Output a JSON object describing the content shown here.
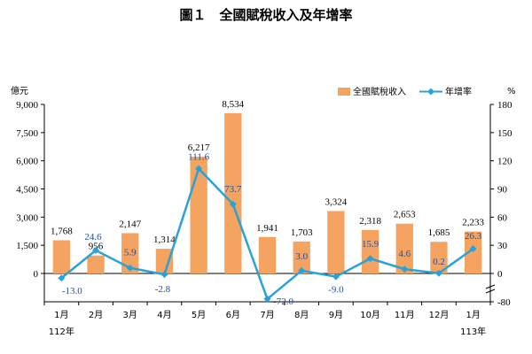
{
  "chart_data": {
    "type": "bar+line",
    "title": "圖１　全國賦稅收入及年增率",
    "left_unit": "億元",
    "right_unit": "%",
    "categories": [
      "1月",
      "2月",
      "3月",
      "4月",
      "5月",
      "6月",
      "7月",
      "8月",
      "9月",
      "10月",
      "11月",
      "12月",
      "1月"
    ],
    "year_labels": [
      {
        "index": 0,
        "text": "112年"
      },
      {
        "index": 12,
        "text": "113年"
      }
    ],
    "series": [
      {
        "name": "全國賦稅收入",
        "type": "bar",
        "axis": "left",
        "color": "#f4a460",
        "values": [
          1768,
          956,
          2147,
          1314,
          6217,
          8534,
          1941,
          1703,
          3324,
          2318,
          2653,
          1685,
          2233
        ],
        "labels": [
          "1,768",
          "956",
          "2,147",
          "1,314",
          "6,217",
          "8,534",
          "1,941",
          "1,703",
          "3,324",
          "2,318",
          "2,653",
          "1,685",
          "2,233"
        ]
      },
      {
        "name": "年增率",
        "type": "line",
        "axis": "right",
        "color": "#2aa2d8",
        "values": [
          -13.0,
          24.6,
          5.9,
          -2.8,
          111.6,
          73.7,
          -72.0,
          3.0,
          -9.0,
          15.9,
          4.6,
          0.2,
          26.3
        ],
        "labels": [
          "-13.0",
          "24.6",
          "5.9",
          "-2.8",
          "111.6",
          "73.7",
          "-72.0",
          "3.0",
          "-9.0",
          "15.9",
          "4.6",
          "0.2",
          "26.3"
        ]
      }
    ],
    "left_axis": {
      "ylim": [
        -1500,
        9000
      ],
      "ticks": [
        0,
        1500,
        3000,
        4500,
        6000,
        7500,
        9000
      ],
      "tick_labels": [
        "0",
        "1,500",
        "3,000",
        "4,500",
        "6,000",
        "7,500",
        "9,000"
      ]
    },
    "right_axis": {
      "ylim": [
        -80,
        180
      ],
      "ticks": [
        0,
        30,
        60,
        90,
        120,
        150,
        180
      ],
      "tick_labels": [
        "0",
        "30",
        "60",
        "90",
        "120",
        "150",
        "180"
      ],
      "bottom_tick": -80,
      "bottom_tick_label": "-80",
      "axis_break": true
    },
    "legend": {
      "position": "top-right",
      "entries": [
        "全國賦稅收入",
        "年增率"
      ]
    },
    "grid": false
  }
}
